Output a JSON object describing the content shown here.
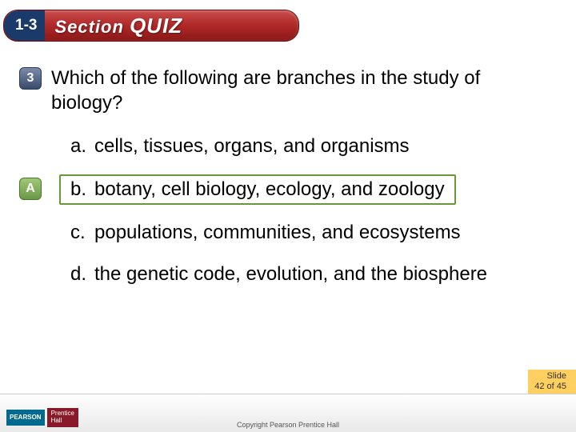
{
  "header": {
    "section_num": "1-3",
    "title_prefix": "Section",
    "title_quiz": "QUIZ",
    "bar_gradient_top": "#c94d4d",
    "bar_gradient_bottom": "#8b1818",
    "section_num_bg": "#1a3a6a"
  },
  "question": {
    "number": "3",
    "text": "Which of the following are branches in the study of biology?",
    "badge_bg_top": "#7a8aa8",
    "badge_bg_bottom": "#3a4a6a"
  },
  "answer_badge": {
    "letter": "A",
    "bg_top": "#a0c878",
    "bg_bottom": "#6a9848"
  },
  "options": [
    {
      "letter": "a.",
      "text": "cells, tissues, organs, and organisms",
      "highlighted": false
    },
    {
      "letter": "b.",
      "text": "botany, cell biology, ecology, and zoology",
      "highlighted": true
    },
    {
      "letter": "c.",
      "text": "populations, communities, and ecosystems",
      "highlighted": false
    },
    {
      "letter": "d.",
      "text": "the genetic code, evolution, and the biosphere",
      "highlighted": false
    }
  ],
  "highlight_border_color": "#6a9838",
  "slide_info": {
    "line1": "Slide",
    "line2": "42 of 45",
    "bg": "#ffd060"
  },
  "logo": {
    "pearson": "PEARSON",
    "prentice1": "Prentice",
    "prentice2": "Hall"
  },
  "copyright": "Copyright Pearson Prentice Hall",
  "typography": {
    "body_fontsize": 24,
    "header_fontsize": 22,
    "badge_fontsize": 16
  }
}
